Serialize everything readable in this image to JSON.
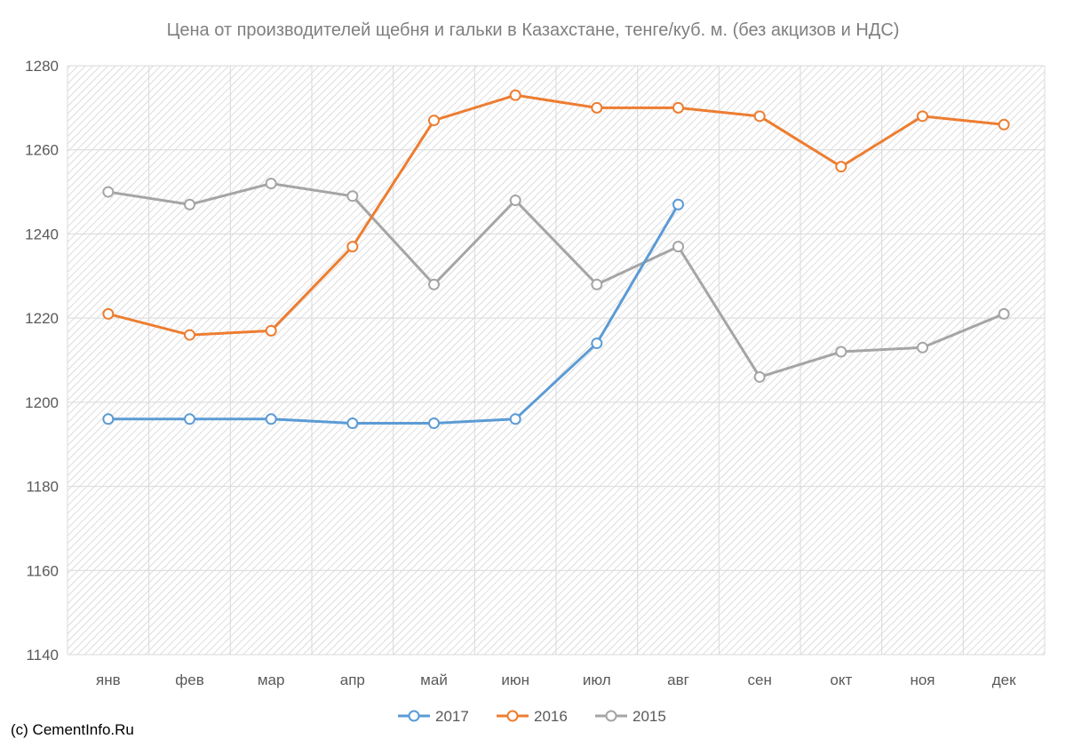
{
  "chart_data": {
    "type": "line",
    "title": "Цена от производителей щебня и гальки в Казахстане, тенге/куб. м. (без акцизов и НДС)",
    "xlabel": "",
    "ylabel": "",
    "categories": [
      "янв",
      "фев",
      "мар",
      "апр",
      "май",
      "июн",
      "июл",
      "авг",
      "сен",
      "окт",
      "ноя",
      "дек"
    ],
    "ylim": [
      1140,
      1280
    ],
    "yticks": [
      1140,
      1160,
      1180,
      1200,
      1220,
      1240,
      1260,
      1280
    ],
    "grid": true,
    "legend_position": "bottom",
    "series": [
      {
        "name": "2017",
        "color": "#5b9bd5",
        "values": [
          1196,
          1196,
          1196,
          1195,
          1195,
          1196,
          1214,
          1247,
          null,
          null,
          null,
          null
        ]
      },
      {
        "name": "2016",
        "color": "#ed7d31",
        "values": [
          1221,
          1216,
          1217,
          1237,
          1267,
          1273,
          1270,
          1270,
          1268,
          1256,
          1268,
          1266
        ]
      },
      {
        "name": "2015",
        "color": "#a5a5a5",
        "values": [
          1250,
          1247,
          1252,
          1249,
          1228,
          1248,
          1228,
          1237,
          1206,
          1212,
          1213,
          1221
        ]
      }
    ]
  },
  "credit": "(c) CementInfo.Ru"
}
